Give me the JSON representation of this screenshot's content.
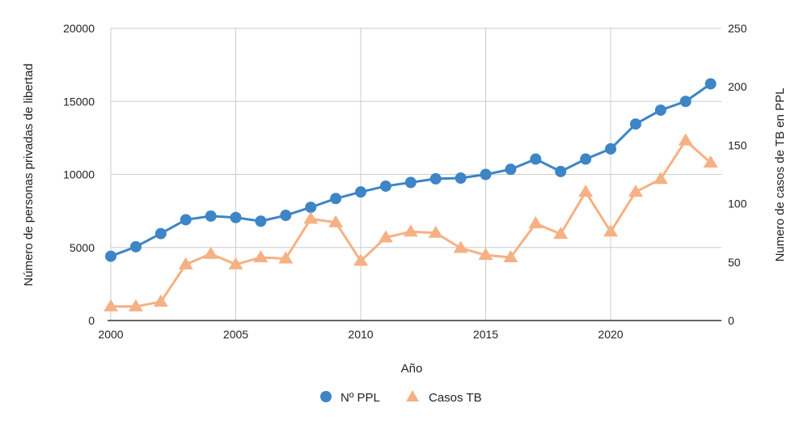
{
  "chart_data": {
    "type": "line",
    "xlabel": "Año",
    "ylabel": "Número de personas privadas de libertad",
    "y2label": "Numero de casos de TB en PPL",
    "xlim": [
      2000,
      2024
    ],
    "ylim": [
      0,
      20000
    ],
    "y2lim": [
      0,
      250
    ],
    "xticks": [
      "2000",
      "2005",
      "2010",
      "2015",
      "2020"
    ],
    "yticks": [
      "0",
      "5000",
      "10000",
      "15000",
      "20000"
    ],
    "y2ticks": [
      "0",
      "50",
      "100",
      "150",
      "200",
      "250"
    ],
    "grid": true,
    "legend_position": "bottom",
    "x": [
      2000,
      2001,
      2002,
      2003,
      2004,
      2005,
      2006,
      2007,
      2008,
      2009,
      2010,
      2011,
      2012,
      2013,
      2014,
      2015,
      2016,
      2017,
      2018,
      2019,
      2020,
      2021,
      2022,
      2023,
      2024
    ],
    "series": [
      {
        "name": "Nº PPL",
        "axis": "left",
        "color": "#3d85c6",
        "marker": "circle",
        "values": [
          4400,
          5050,
          5950,
          6900,
          7150,
          7050,
          6800,
          7200,
          7750,
          8350,
          8800,
          9200,
          9450,
          9700,
          9750,
          10000,
          10350,
          11050,
          10200,
          11050,
          11750,
          13450,
          14400,
          15000,
          16200
        ]
      },
      {
        "name": "Casos TB",
        "axis": "right",
        "color": "#f5b184",
        "marker": "triangle",
        "values": [
          12,
          12,
          16,
          48,
          57,
          48,
          54,
          53,
          87,
          84,
          51,
          71,
          76,
          75,
          62,
          56,
          54,
          83,
          74,
          110,
          76,
          110,
          121,
          154,
          135
        ]
      }
    ]
  }
}
